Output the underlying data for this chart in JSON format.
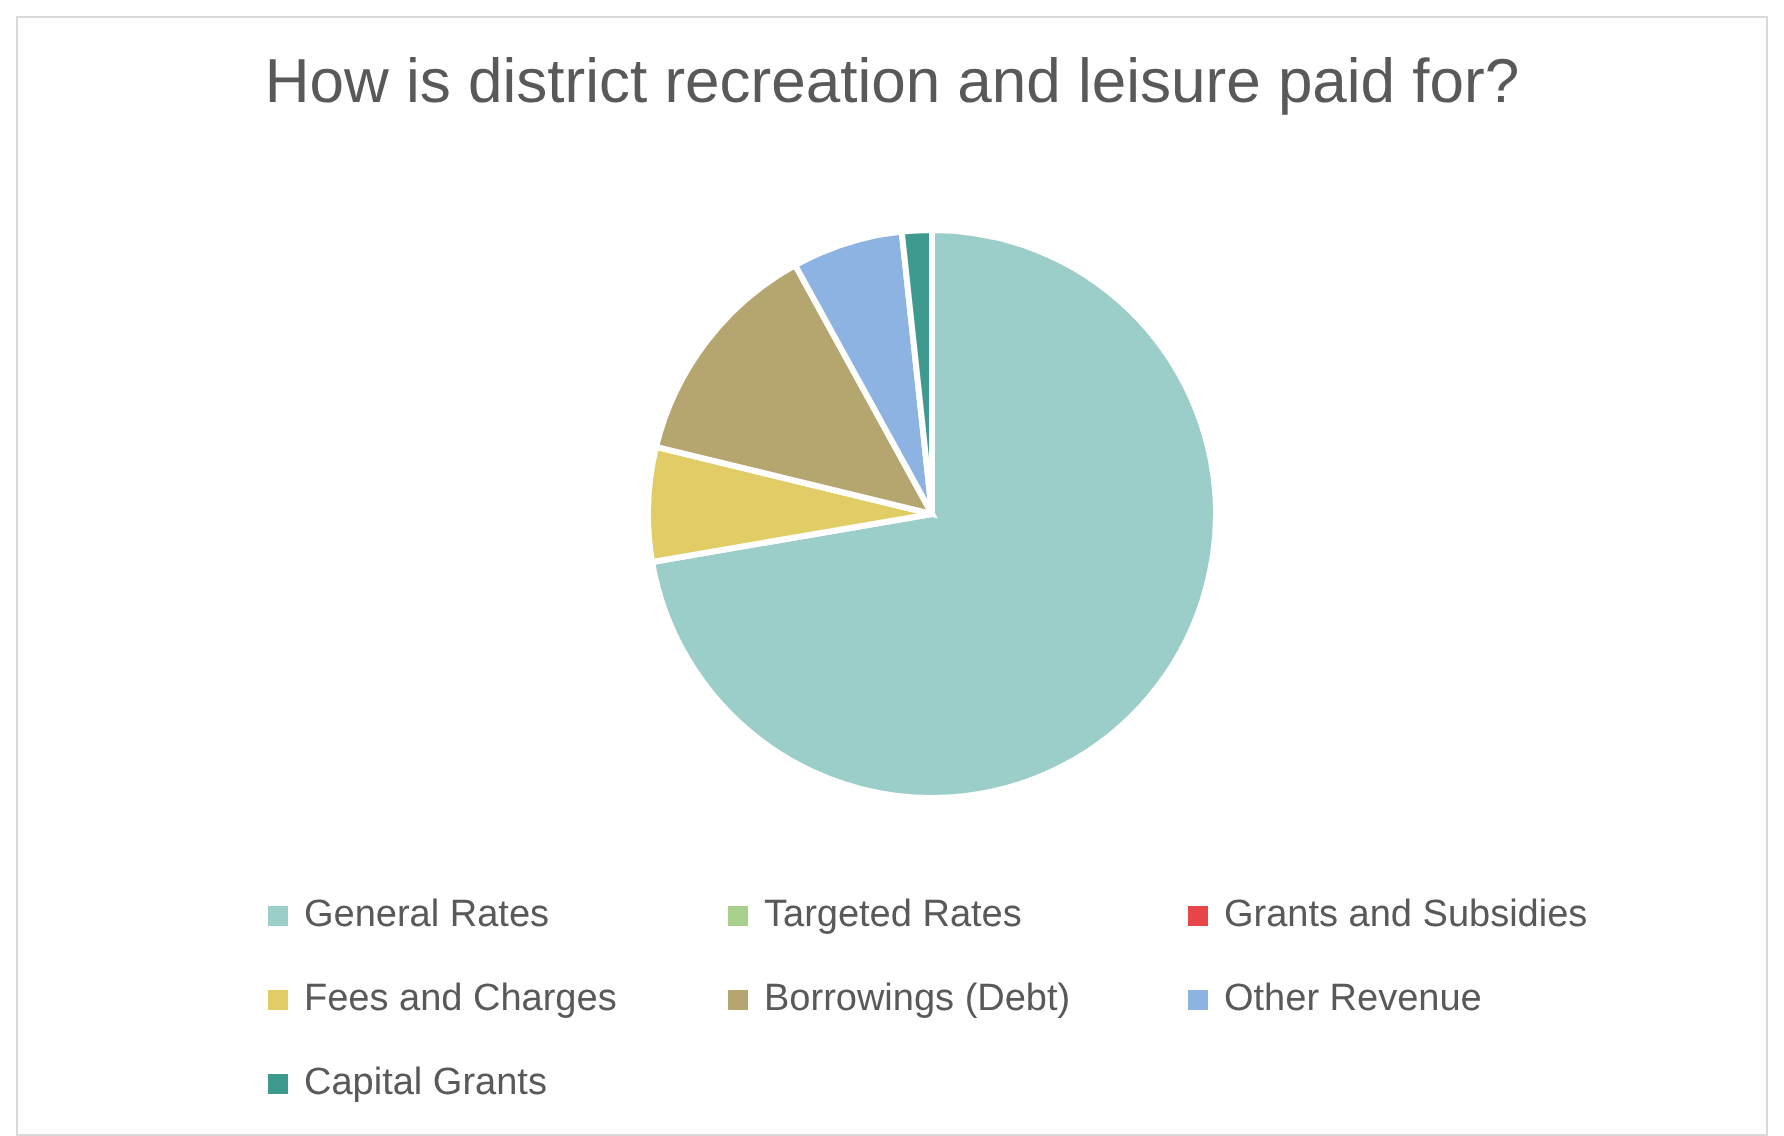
{
  "chart_data": {
    "type": "pie",
    "title": "How is district recreation and leisure paid for?",
    "categories": [
      "General Rates",
      "Targeted Rates",
      "Grants and Subsidies",
      "Fees and Charges",
      "Borrowings (Debt)",
      "Other Revenue",
      "Capital Grants"
    ],
    "values": [
      72.3,
      0,
      0,
      6.5,
      13.2,
      6.3,
      1.7
    ],
    "colors": [
      "#9bcdc9",
      "#a9d18e",
      "#e8474a",
      "#e2cc66",
      "#b5a56f",
      "#8db3e2",
      "#3e9a8e"
    ],
    "legend": "bottom"
  }
}
